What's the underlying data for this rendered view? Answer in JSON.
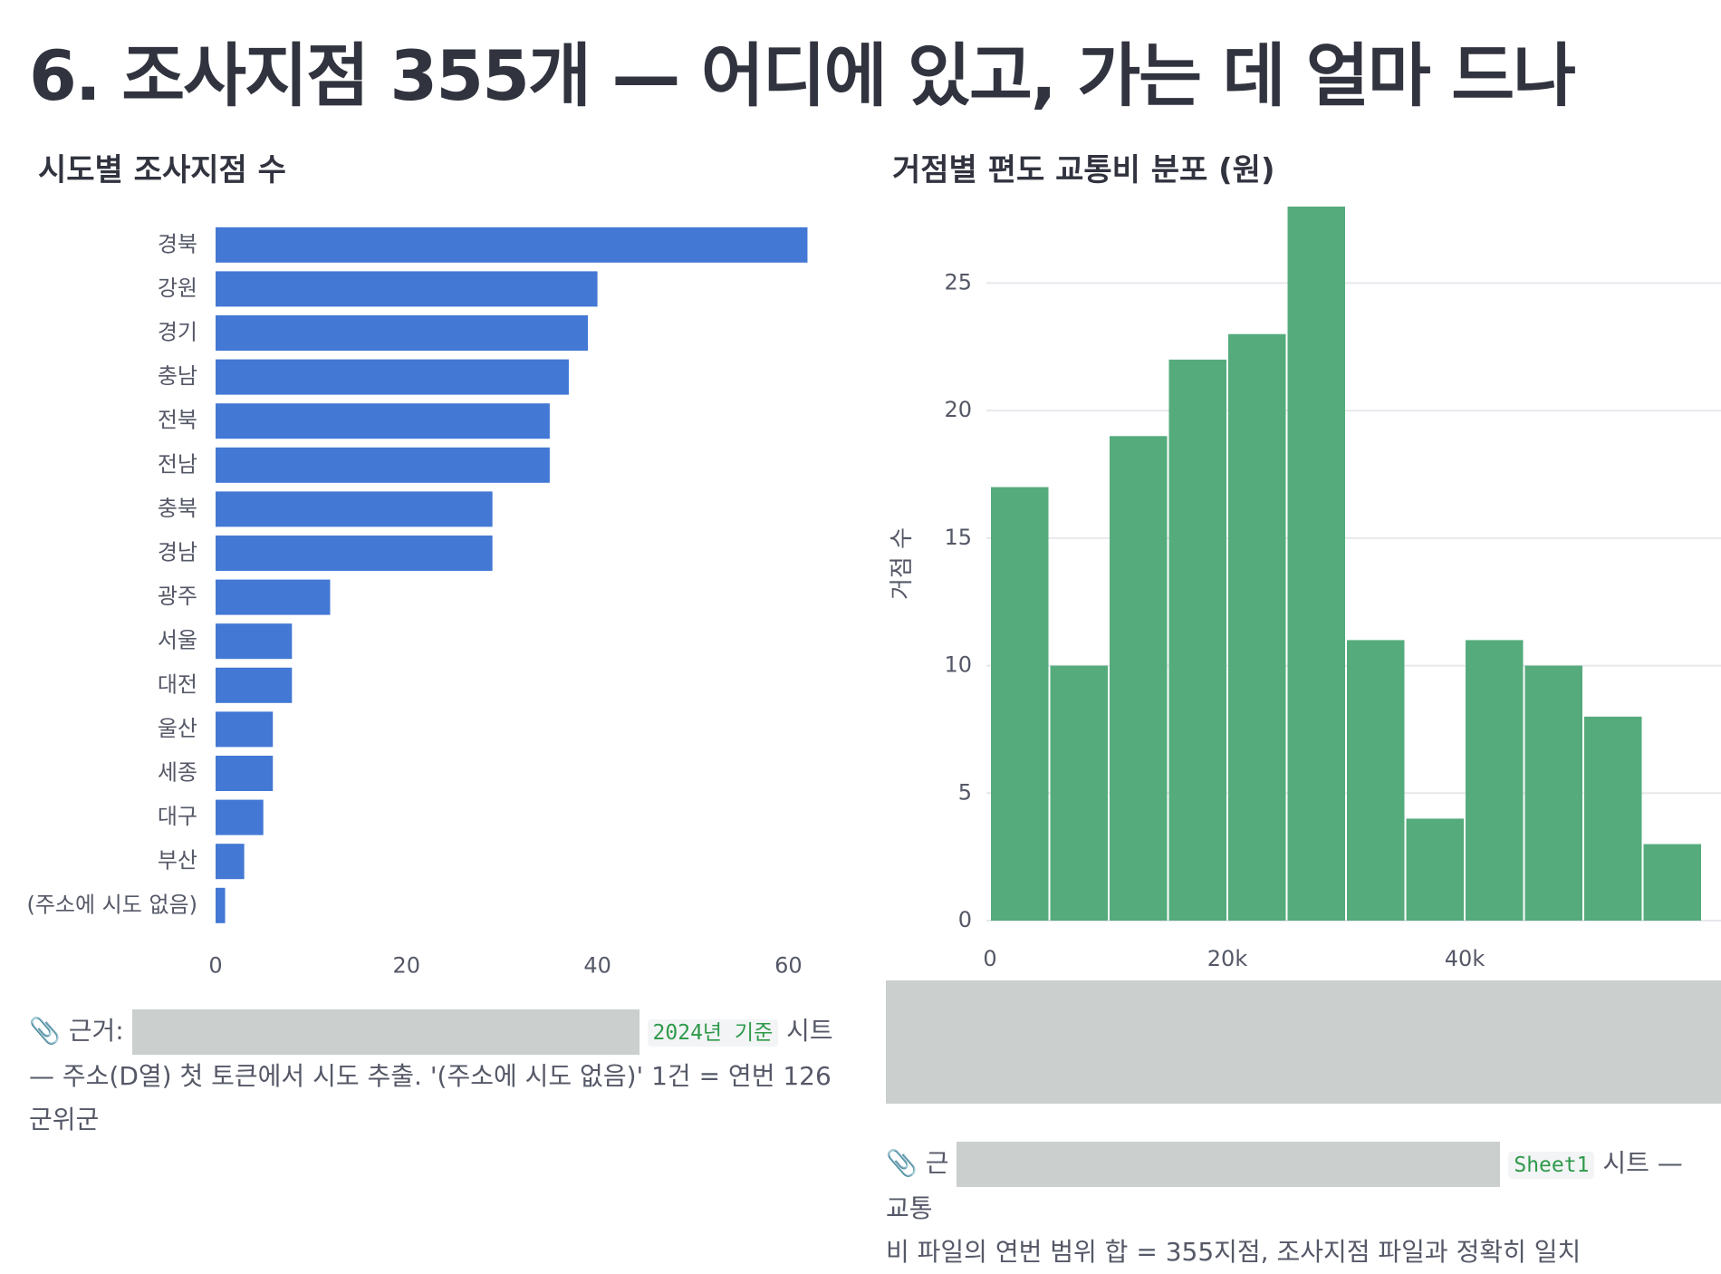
{
  "page": {
    "title": "6. 조사지점 355개 — 어디에 있고, 가는 데 얼마 드나"
  },
  "colors": {
    "bar": "#4378d4",
    "hist": "#55ab7c",
    "grid": "#e6e8ec",
    "redaction": "#cbcfcd"
  },
  "chart_data": [
    {
      "type": "bar",
      "orientation": "horizontal",
      "title": "시도별 조사지점 수",
      "categories": [
        "경북",
        "강원",
        "경기",
        "충남",
        "전북",
        "전남",
        "충북",
        "경남",
        "광주",
        "서울",
        "대전",
        "울산",
        "세종",
        "대구",
        "부산",
        "(주소에 시도 없음)"
      ],
      "values": [
        62,
        40,
        39,
        37,
        35,
        35,
        29,
        29,
        12,
        8,
        8,
        6,
        6,
        5,
        3,
        1
      ],
      "xticks": [
        0,
        20,
        40,
        60
      ],
      "xlim": [
        0,
        63
      ],
      "grid": false,
      "xlabel": "",
      "ylabel": ""
    },
    {
      "type": "bar",
      "subtype": "histogram",
      "title": "거점별 편도 교통비 분포 (원)",
      "bins": [
        [
          0,
          5000
        ],
        [
          5000,
          10000
        ],
        [
          10000,
          15000
        ],
        [
          15000,
          20000
        ],
        [
          20000,
          25000
        ],
        [
          25000,
          30000
        ],
        [
          30000,
          35000
        ],
        [
          35000,
          40000
        ],
        [
          40000,
          45000
        ],
        [
          45000,
          50000
        ],
        [
          50000,
          55000
        ],
        [
          55000,
          60000
        ]
      ],
      "values": [
        17,
        10,
        19,
        22,
        23,
        28,
        11,
        4,
        11,
        10,
        8,
        3
      ],
      "xticks": [
        {
          "value": 0,
          "label": "0"
        },
        {
          "value": 20000,
          "label": "20k"
        },
        {
          "value": 40000,
          "label": "40k"
        }
      ],
      "yticks": [
        0,
        5,
        10,
        15,
        20,
        25
      ],
      "xlim": [
        0,
        60000
      ],
      "ylim": [
        0,
        28
      ],
      "grid": true,
      "xlabel": "",
      "ylabel": "거점 수"
    }
  ],
  "notes": {
    "left": {
      "icon": "paperclip-icon",
      "prefix": "📎 근거:",
      "code": "2024년 기준",
      "suffix": "시트",
      "line2": "— 주소(D열) 첫 토큰에서 시도 추출. '(주소에 시도 없음)' 1건 = 연번 126 군위군"
    },
    "right": {
      "icon": "paperclip-icon",
      "prefix": "📎 근",
      "code": "Sheet1",
      "suffix": "시트 — 교통",
      "line2": "비 파일의 연번 범위 합 = 355지점, 조사지점 파일과 정확히 일치"
    }
  }
}
